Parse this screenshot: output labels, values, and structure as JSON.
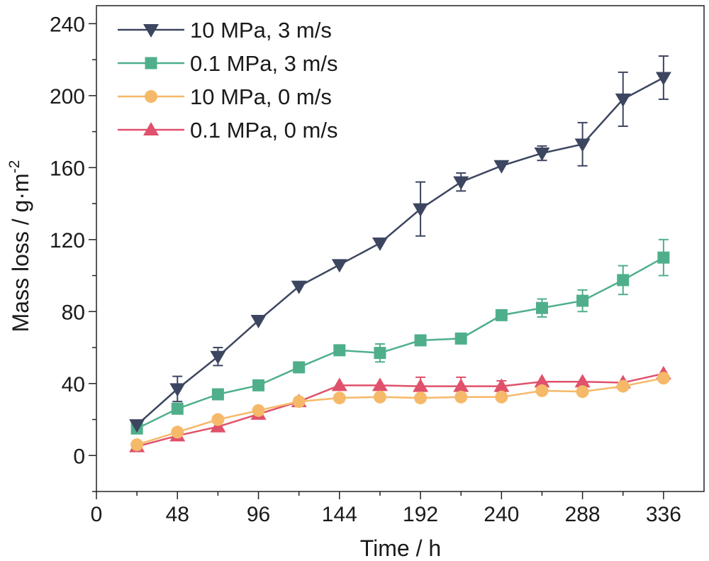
{
  "chart_data": {
    "type": "line",
    "xlabel": "Time / h",
    "ylabel": "Mass loss / g·m",
    "ylabel_superscript": "-2",
    "xlim": [
      0,
      360
    ],
    "ylim": [
      -20,
      250
    ],
    "x_ticks": [
      0,
      48,
      96,
      144,
      192,
      240,
      288,
      336
    ],
    "y_ticks": [
      0,
      40,
      80,
      120,
      160,
      200,
      240
    ],
    "grid": false,
    "legend_position": "top-left",
    "x": [
      24,
      48,
      72,
      96,
      120,
      144,
      168,
      192,
      216,
      240,
      264,
      288,
      312,
      336
    ],
    "series": [
      {
        "name": "10 MPa, 3 m/s",
        "color": "#3d4660",
        "marker": "triangle-down",
        "values": [
          17,
          37,
          55,
          75,
          94,
          106,
          118,
          137,
          152,
          161,
          168,
          173,
          198,
          210
        ],
        "errors": [
          0,
          7,
          5,
          0,
          0,
          0,
          0,
          15,
          5,
          0,
          4,
          12,
          15,
          12
        ]
      },
      {
        "name": "0.1 MPa, 3 m/s",
        "color": "#4faf8b",
        "marker": "square",
        "values": [
          15,
          26,
          34,
          39,
          49,
          58.5,
          57,
          64,
          65,
          78,
          82,
          86,
          97.5,
          110
        ],
        "errors": [
          0,
          0,
          0,
          0,
          0,
          0,
          5,
          0,
          0,
          0,
          5,
          6,
          8,
          10
        ]
      },
      {
        "name": "10 MPa, 0 m/s",
        "color": "#f5b969",
        "marker": "circle",
        "values": [
          6,
          13,
          20,
          25,
          30,
          32,
          32.5,
          32,
          32.5,
          32.5,
          36,
          35.5,
          38.5,
          43
        ],
        "errors": [
          0,
          0,
          0,
          0,
          0,
          0,
          0,
          0,
          0,
          0,
          0,
          0,
          0,
          0
        ]
      },
      {
        "name": "0.1 MPa, 0 m/s",
        "color": "#e0516b",
        "marker": "triangle-up",
        "values": [
          5,
          11,
          16,
          23,
          30,
          39,
          39,
          38.5,
          38.5,
          38.5,
          41,
          41,
          40.5,
          45.5
        ],
        "errors": [
          0,
          0,
          0,
          0,
          0,
          0,
          0,
          5,
          5,
          3,
          0,
          0,
          0,
          0
        ]
      }
    ]
  }
}
